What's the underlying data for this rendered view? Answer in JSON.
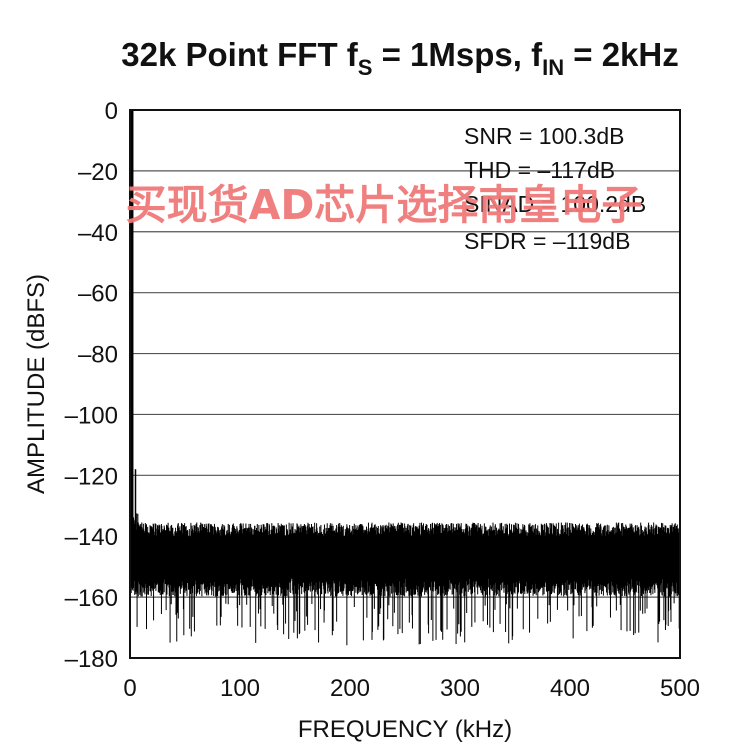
{
  "chart_data": {
    "type": "line",
    "title": {
      "main": "32k Point FFT f",
      "sub1": "S",
      "mid": " = 1Msps, f",
      "sub2": "IN",
      "end": " = 2kHz"
    },
    "xlabel": "FREQUENCY (kHz)",
    "ylabel": "AMPLITUDE (dBFS)",
    "xlim": [
      0,
      500
    ],
    "ylim": [
      -180,
      0
    ],
    "xticks": [
      "0",
      "100",
      "200",
      "300",
      "400",
      "500"
    ],
    "yticks": [
      "0",
      "–20",
      "–40",
      "–60",
      "–80",
      "–100",
      "–120",
      "–140",
      "–160",
      "–180"
    ],
    "grid": "horizontal",
    "series": [
      {
        "signal": {
          "frequency_khz": 2,
          "amplitude_dbfs": 0
        },
        "noise_floor_dbfs": {
          "typical_top": -138,
          "center": -147,
          "typical_bottom": -158,
          "min": -180
        },
        "color": "#000000"
      }
    ],
    "annotations": [
      "SNR = 100.3dB",
      "THD = –117dB",
      "SINAD = 100.2dB",
      "SFDR = –119dB"
    ]
  },
  "watermark": "买现货AD芯片选择南皇电子"
}
